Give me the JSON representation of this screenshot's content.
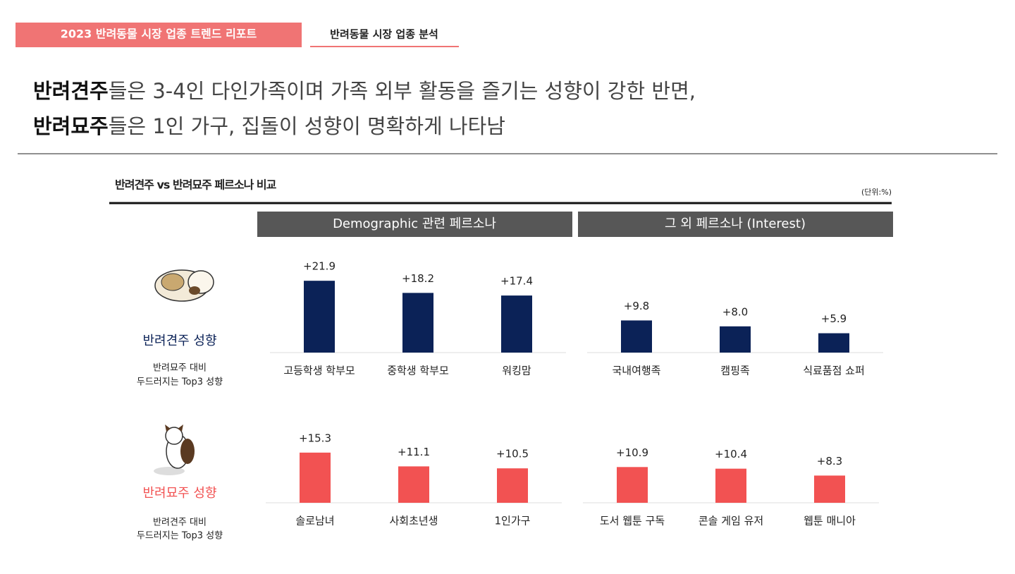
{
  "header": {
    "tag": "2023 반려동물 시장 업종 트렌드 리포트",
    "tab": "반려동물 시장 업종 분석"
  },
  "headline": [
    {
      "bold": "반려견주",
      "rest": "들은 3-4인 다인가족이며 가족 외부 활동을 즐기는 성향이 강한 반면,"
    },
    {
      "bold": "반려묘주",
      "rest": "들은 1인 가구, 집돌이 성향이 명확하게 나타남"
    }
  ],
  "section": {
    "title": "반려견주 vs 반려묘주 페르소나 비교",
    "unit": "(단위:%)",
    "groups": [
      "Demographic 관련 페르소나",
      "그 외 페르소나 (Interest)"
    ]
  },
  "rows": [
    {
      "label": "반려견주 성향",
      "note": [
        "반려묘주 대비",
        "두드러지는 Top3 성향"
      ]
    },
    {
      "label": "반려묘주 성향",
      "note": [
        "반려견주 대비",
        "두드러지는 Top3 성향"
      ]
    }
  ],
  "chart_data": [
    {
      "type": "bar",
      "categories": [
        "고등학생 학부모",
        "중학생 학부모",
        "워킹맘"
      ],
      "values": [
        21.9,
        18.2,
        17.4
      ],
      "value_labels": [
        "+21.9",
        "+18.2",
        "+17.4"
      ],
      "color": "#0b2257"
    },
    {
      "type": "bar",
      "categories": [
        "국내여행족",
        "캠핑족",
        "식료품점 쇼퍼"
      ],
      "values": [
        9.8,
        8.0,
        5.9
      ],
      "value_labels": [
        "+9.8",
        "+8.0",
        "+5.9"
      ],
      "color": "#0b2257"
    },
    {
      "type": "bar",
      "categories": [
        "솔로남녀",
        "사회초년생",
        "1인가구"
      ],
      "values": [
        15.3,
        11.1,
        10.5
      ],
      "value_labels": [
        "+15.3",
        "+11.1",
        "+10.5"
      ],
      "color": "#f25252"
    },
    {
      "type": "bar",
      "categories": [
        "도서 웹툰 구독",
        "콘솔 게임 유저",
        "웹툰 매니아"
      ],
      "values": [
        10.9,
        10.4,
        8.3
      ],
      "value_labels": [
        "+10.9",
        "+10.4",
        "+8.3"
      ],
      "color": "#f25252"
    }
  ]
}
